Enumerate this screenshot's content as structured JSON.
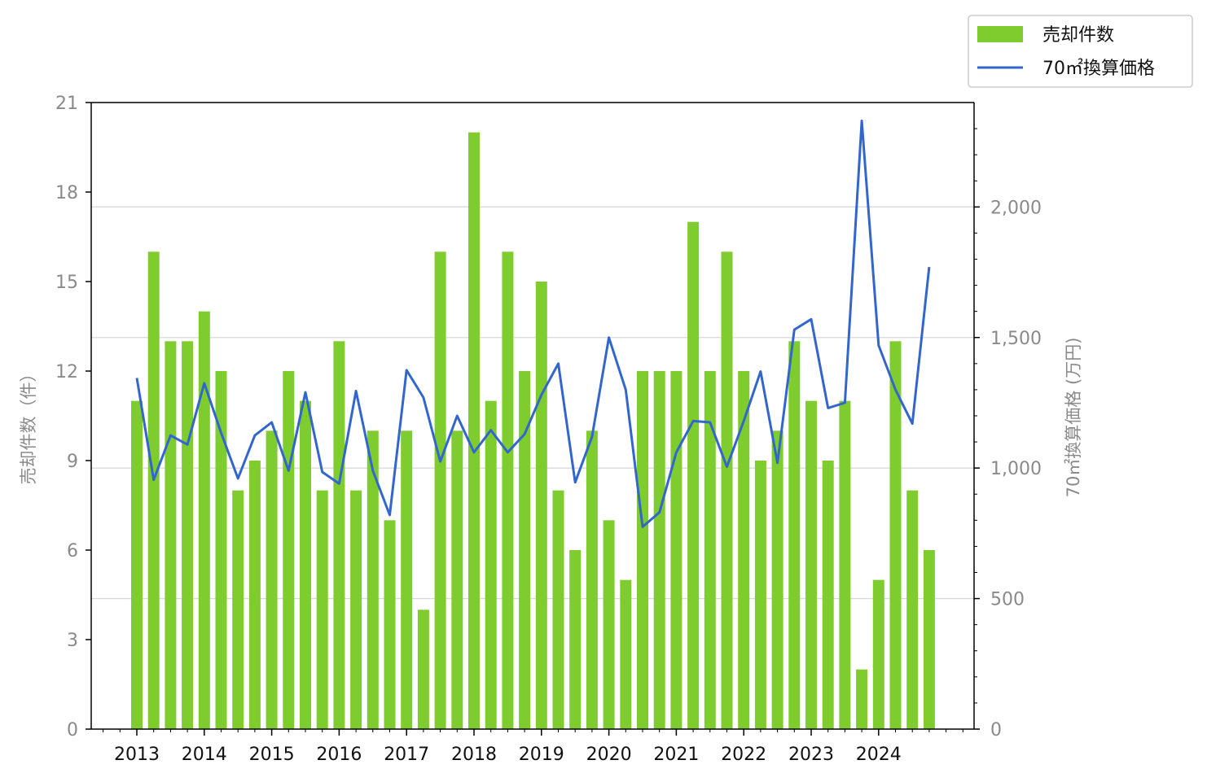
{
  "chart_data": {
    "type": "bar+line",
    "title": "",
    "x_ticks": [
      "2013",
      "2014",
      "2015",
      "2016",
      "2017",
      "2018",
      "2019",
      "2020",
      "2021",
      "2022",
      "2023",
      "2024"
    ],
    "quarters_per_year": 4,
    "start_year": 2013,
    "left_axis": {
      "label": "売却件数（件）",
      "ylim": [
        0,
        21
      ],
      "ticks": [
        "0",
        "3",
        "6",
        "9",
        "12",
        "15",
        "18",
        "21"
      ]
    },
    "right_axis": {
      "label": "70㎡換算価格 (万円)",
      "ylim": [
        0,
        2400
      ],
      "ticks": [
        "0",
        "500",
        "1,000",
        "1,500",
        "2,000"
      ]
    },
    "grid": "horizontal, right axis",
    "legend_position": "top-right",
    "colors": {
      "bars": "#7fcc2e",
      "line": "#3366cc",
      "grid": "#d9d9d9"
    },
    "series": [
      {
        "name": "売却件数",
        "kind": "bar",
        "axis": "left",
        "values": [
          11,
          16,
          13,
          13,
          14,
          12,
          8,
          9,
          10,
          12,
          11,
          8,
          13,
          8,
          10,
          7,
          10,
          4,
          16,
          10,
          20,
          11,
          16,
          12,
          15,
          8,
          6,
          10,
          7,
          5,
          12,
          12,
          12,
          17,
          12,
          16,
          12,
          9,
          10,
          13,
          11,
          9,
          11,
          2,
          5,
          13,
          8,
          6
        ]
      },
      {
        "name": "70㎡換算価格",
        "kind": "line",
        "axis": "right",
        "values": [
          1345,
          955,
          1125,
          1090,
          1325,
          1135,
          960,
          1125,
          1175,
          990,
          1290,
          985,
          940,
          1295,
          990,
          820,
          1375,
          1270,
          1025,
          1200,
          1060,
          1145,
          1060,
          1130,
          1280,
          1400,
          945,
          1120,
          1500,
          1300,
          775,
          830,
          1060,
          1180,
          1175,
          1005,
          1180,
          1370,
          1020,
          1530,
          1570,
          1230,
          1250,
          2330,
          1470,
          1300,
          1170,
          1770
        ]
      }
    ]
  }
}
